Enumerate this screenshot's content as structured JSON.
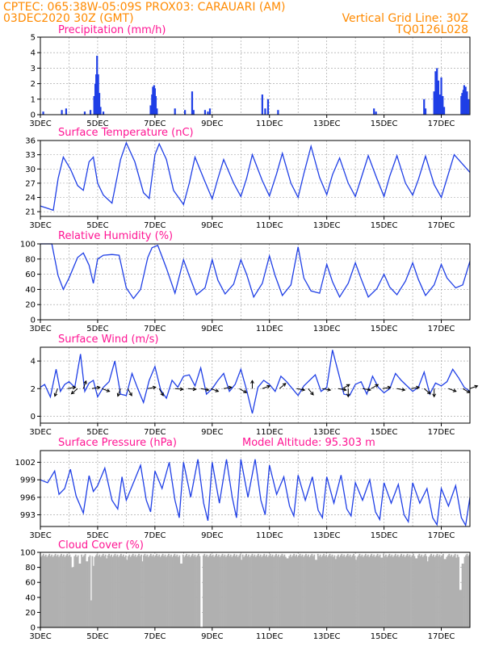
{
  "header": {
    "line1": "CPTEC:    065:38W-05:09S   PROX03: CARAUARI (AM)",
    "line2_left": "03DEC2020 30Z (GMT)",
    "line2_right": "Vertical Grid Line: 30Z",
    "line3_right": "TQ0126L028"
  },
  "colors": {
    "header": "#ff8a00",
    "title": "#ff1493",
    "series": "#1f3fe6",
    "cloud": "#b0b0b0",
    "grid": "#9a9a9a"
  },
  "x_tick_labels": [
    "3DEC",
    "5DEC",
    "7DEC",
    "9DEC",
    "11DEC",
    "13DEC",
    "15DEC",
    "17DEC"
  ],
  "x_tick_positions_days": [
    0,
    2,
    4,
    6,
    8,
    10,
    12,
    14
  ],
  "chart_data": [
    {
      "type": "bar",
      "title": "Precipitation (mm/h)",
      "ylim": [
        0,
        5
      ],
      "yticks": [
        0,
        1,
        2,
        3,
        4,
        5
      ],
      "x_day_range": [
        0,
        15
      ],
      "bars": [
        [
          0.1,
          0.2
        ],
        [
          0.75,
          0.3
        ],
        [
          0.9,
          0.4
        ],
        [
          1.55,
          0.2
        ],
        [
          1.75,
          0.3
        ],
        [
          1.88,
          1.2
        ],
        [
          1.92,
          2.0
        ],
        [
          1.95,
          2.6
        ],
        [
          1.98,
          3.8
        ],
        [
          2.02,
          2.6
        ],
        [
          2.06,
          1.4
        ],
        [
          2.1,
          0.5
        ],
        [
          2.2,
          0.2
        ],
        [
          3.85,
          0.6
        ],
        [
          3.9,
          1.3
        ],
        [
          3.93,
          1.8
        ],
        [
          3.97,
          1.9
        ],
        [
          4.0,
          1.7
        ],
        [
          4.03,
          1.2
        ],
        [
          4.07,
          0.4
        ],
        [
          4.7,
          0.4
        ],
        [
          5.05,
          0.3
        ],
        [
          5.3,
          1.5
        ],
        [
          5.35,
          0.3
        ],
        [
          5.75,
          0.3
        ],
        [
          5.85,
          0.2
        ],
        [
          5.92,
          0.4
        ],
        [
          7.75,
          1.3
        ],
        [
          7.85,
          0.4
        ],
        [
          7.95,
          1.0
        ],
        [
          8.3,
          0.3
        ],
        [
          11.65,
          0.4
        ],
        [
          11.72,
          0.2
        ],
        [
          13.4,
          1.0
        ],
        [
          13.45,
          0.4
        ],
        [
          13.75,
          1.5
        ],
        [
          13.8,
          2.8
        ],
        [
          13.85,
          3.0
        ],
        [
          13.9,
          2.2
        ],
        [
          13.95,
          1.3
        ],
        [
          14.0,
          2.4
        ],
        [
          14.05,
          1.2
        ],
        [
          14.1,
          0.5
        ],
        [
          14.7,
          1.2
        ],
        [
          14.73,
          1.4
        ],
        [
          14.77,
          1.6
        ],
        [
          14.8,
          1.9
        ],
        [
          14.85,
          1.8
        ],
        [
          14.9,
          1.5
        ],
        [
          14.95,
          1.0
        ]
      ]
    },
    {
      "type": "line",
      "title": "Surface Temperature (nC)",
      "ylim": [
        20,
        36
      ],
      "yticks": [
        21,
        24,
        27,
        30,
        33,
        36
      ],
      "x_day_range": [
        0,
        15
      ],
      "x": [
        0,
        0.2,
        0.45,
        0.62,
        0.8,
        1.05,
        1.3,
        1.5,
        1.7,
        1.85,
        2.0,
        2.2,
        2.5,
        2.8,
        3.0,
        3.3,
        3.6,
        3.8,
        4.0,
        4.15,
        4.4,
        4.65,
        5.0,
        5.2,
        5.4,
        5.75,
        6.0,
        6.2,
        6.4,
        6.75,
        7.0,
        7.2,
        7.4,
        7.75,
        8.0,
        8.25,
        8.45,
        8.75,
        9.0,
        9.2,
        9.45,
        9.75,
        10.0,
        10.2,
        10.45,
        10.75,
        11.0,
        11.2,
        11.45,
        11.75,
        12.0,
        12.2,
        12.45,
        12.75,
        13.0,
        13.2,
        13.45,
        13.75,
        14.0,
        14.2,
        14.45,
        14.75,
        15.0
      ],
      "y": [
        22.2,
        21.8,
        21.3,
        28,
        32.5,
        30,
        26.5,
        25.5,
        31.5,
        32.5,
        27,
        24.5,
        22.8,
        32,
        35.5,
        31.5,
        25,
        23.8,
        33,
        35.3,
        32,
        25.5,
        22.5,
        27,
        32.5,
        27.3,
        23.7,
        28,
        32,
        27,
        24.2,
        28,
        33,
        27.5,
        24.3,
        29,
        33.3,
        27,
        24,
        29,
        34.8,
        28.2,
        24.6,
        28.8,
        32.3,
        27,
        24.2,
        28,
        32.8,
        28,
        24.2,
        28.5,
        32.8,
        27,
        24.5,
        27.8,
        32.7,
        26.7,
        24,
        28,
        33,
        31,
        29.3
      ]
    },
    {
      "type": "line",
      "title": "Relative Humidity (%)",
      "ylim": [
        0,
        100
      ],
      "yticks": [
        0,
        20,
        40,
        60,
        80,
        100
      ],
      "x_day_range": [
        0,
        15
      ],
      "x": [
        0,
        0.4,
        0.62,
        0.8,
        1.0,
        1.3,
        1.5,
        1.7,
        1.85,
        2.0,
        2.2,
        2.5,
        2.75,
        3.0,
        3.25,
        3.5,
        3.75,
        3.9,
        4.1,
        4.4,
        4.7,
        5.0,
        5.2,
        5.45,
        5.75,
        6.0,
        6.2,
        6.45,
        6.75,
        7.0,
        7.2,
        7.45,
        7.75,
        8.0,
        8.2,
        8.45,
        8.75,
        9.0,
        9.2,
        9.45,
        9.75,
        10.0,
        10.2,
        10.45,
        10.75,
        11.0,
        11.2,
        11.45,
        11.75,
        12.0,
        12.2,
        12.45,
        12.75,
        13.0,
        13.2,
        13.45,
        13.75,
        14.0,
        14.2,
        14.5,
        14.75,
        15.0
      ],
      "y": [
        100,
        100,
        58,
        40,
        55,
        82,
        88,
        72,
        48,
        80,
        85,
        86,
        85,
        42,
        28,
        40,
        82,
        95,
        98,
        68,
        35,
        79,
        58,
        33,
        42,
        79,
        52,
        34,
        47,
        79,
        60,
        30,
        48,
        84,
        58,
        32,
        46,
        96,
        55,
        38,
        35,
        73,
        50,
        30,
        48,
        75,
        54,
        30,
        41,
        60,
        43,
        33,
        51,
        75,
        53,
        32,
        46,
        73,
        55,
        42,
        46,
        77
      ]
    },
    {
      "type": "line",
      "title": "Surface Wind (m/s)",
      "ylim": [
        -0.5,
        5
      ],
      "yticks": [
        0,
        2,
        4
      ],
      "x_day_range": [
        0,
        15
      ],
      "x": [
        0,
        0.15,
        0.35,
        0.55,
        0.7,
        0.85,
        1.0,
        1.2,
        1.4,
        1.55,
        1.7,
        1.85,
        2.0,
        2.2,
        2.4,
        2.6,
        2.8,
        3.0,
        3.2,
        3.4,
        3.6,
        3.8,
        4.0,
        4.2,
        4.4,
        4.6,
        4.8,
        5.0,
        5.2,
        5.4,
        5.6,
        5.8,
        6.0,
        6.2,
        6.4,
        6.6,
        6.8,
        7.0,
        7.2,
        7.4,
        7.6,
        7.8,
        8.0,
        8.2,
        8.4,
        8.6,
        8.8,
        9.0,
        9.2,
        9.4,
        9.6,
        9.8,
        10.0,
        10.2,
        10.4,
        10.6,
        10.8,
        11.0,
        11.2,
        11.4,
        11.6,
        11.8,
        12.0,
        12.2,
        12.4,
        12.6,
        12.8,
        13.0,
        13.2,
        13.4,
        13.6,
        13.8,
        14.0,
        14.2,
        14.4,
        14.6,
        14.8,
        15.0
      ],
      "y": [
        2.1,
        2.3,
        1.4,
        3.4,
        1.8,
        2.3,
        2.5,
        2.1,
        4.5,
        1.8,
        2.4,
        2.6,
        1.4,
        2.1,
        2.5,
        4.0,
        1.6,
        1.5,
        3.1,
        2.0,
        1.0,
        2.6,
        3.6,
        1.9,
        1.3,
        2.6,
        2.1,
        2.9,
        3.0,
        2.2,
        3.5,
        1.6,
        2.0,
        2.6,
        3.1,
        1.8,
        2.3,
        3.4,
        1.9,
        0.2,
        2.1,
        2.6,
        2.3,
        1.8,
        2.9,
        2.5,
        2.0,
        1.5,
        2.2,
        2.6,
        3.0,
        1.8,
        2.1,
        4.8,
        3.2,
        1.6,
        1.5,
        2.3,
        2.5,
        1.6,
        2.9,
        2.1,
        1.7,
        2.0,
        3.1,
        2.6,
        2.2,
        1.8,
        2.1,
        3.2,
        1.6,
        2.4,
        2.2,
        2.5,
        3.4,
        2.8,
        2.1,
        1.8
      ],
      "arrows_dir_deg": [
        [
          0.6,
          200
        ],
        [
          0.95,
          80
        ],
        [
          1.3,
          230
        ],
        [
          1.5,
          20
        ],
        [
          1.8,
          80
        ],
        [
          2.15,
          110
        ],
        [
          2.8,
          200
        ],
        [
          3.05,
          150
        ],
        [
          3.75,
          80
        ],
        [
          4.15,
          150
        ],
        [
          4.7,
          95
        ],
        [
          5.15,
          95
        ],
        [
          5.6,
          100
        ],
        [
          5.95,
          110
        ],
        [
          6.4,
          80
        ],
        [
          6.95,
          120
        ],
        [
          7.4,
          0
        ],
        [
          7.75,
          70
        ],
        [
          8.35,
          50
        ],
        [
          8.95,
          100
        ],
        [
          9.35,
          140
        ],
        [
          9.85,
          100
        ],
        [
          10.4,
          100
        ],
        [
          10.55,
          60
        ],
        [
          10.75,
          180
        ],
        [
          11.25,
          100
        ],
        [
          11.55,
          60
        ],
        [
          11.95,
          80
        ],
        [
          12.45,
          100
        ],
        [
          12.95,
          80
        ],
        [
          13.4,
          130
        ],
        [
          13.75,
          180
        ],
        [
          14.25,
          110
        ],
        [
          14.75,
          120
        ],
        [
          15.0,
          70
        ]
      ]
    },
    {
      "type": "line",
      "title": "Surface Pressure (hPa)",
      "annotation": "Model Altitude: 95.303 m",
      "ylim": [
        991,
        1004
      ],
      "yticks": [
        993,
        996,
        999,
        1002
      ],
      "x_day_range": [
        0,
        15
      ],
      "x": [
        0,
        0.25,
        0.5,
        0.65,
        0.85,
        1.05,
        1.25,
        1.5,
        1.7,
        1.85,
        2.0,
        2.25,
        2.5,
        2.7,
        2.85,
        3.0,
        3.25,
        3.5,
        3.7,
        3.85,
        4.0,
        4.25,
        4.5,
        4.7,
        4.85,
        5.0,
        5.25,
        5.5,
        5.7,
        5.85,
        6.0,
        6.25,
        6.5,
        6.7,
        6.85,
        7.0,
        7.25,
        7.5,
        7.7,
        7.85,
        8.0,
        8.25,
        8.5,
        8.7,
        8.85,
        9.0,
        9.25,
        9.5,
        9.7,
        9.85,
        10.0,
        10.25,
        10.5,
        10.7,
        10.85,
        11.0,
        11.25,
        11.5,
        11.7,
        11.85,
        12.0,
        12.25,
        12.5,
        12.7,
        12.85,
        13.0,
        13.25,
        13.5,
        13.7,
        13.85,
        14.0,
        14.25,
        14.5,
        14.7,
        14.85,
        15.0
      ],
      "y": [
        999,
        998.5,
        1000.5,
        996.5,
        997.5,
        1000.8,
        996.2,
        993.3,
        999.7,
        997.0,
        998,
        1001,
        995.5,
        994,
        999.5,
        995.5,
        998.5,
        1001.5,
        995.5,
        993.5,
        1000.5,
        997.5,
        1002,
        995.5,
        992.5,
        1002,
        996,
        1002.5,
        995,
        992,
        1002,
        995,
        1002.5,
        996,
        992.5,
        1002.5,
        996,
        1002.5,
        995.5,
        993,
        1001.5,
        996.5,
        999.5,
        994.5,
        992.8,
        999.8,
        995.5,
        999.5,
        993.8,
        992.5,
        999.5,
        995,
        999.8,
        994,
        992.8,
        998.5,
        995.5,
        999,
        993.5,
        992.2,
        998.5,
        995,
        998.2,
        993,
        991.8,
        998.5,
        995,
        997.5,
        992.5,
        991.3,
        997.5,
        994.5,
        998,
        992.5,
        991.2,
        996
      ]
    },
    {
      "type": "bar",
      "title": "Cloud Cover (%)",
      "ylim": [
        0,
        100
      ],
      "yticks": [
        0,
        20,
        40,
        60,
        80,
        100
      ],
      "x_day_range": [
        0,
        15
      ],
      "base_value": 96,
      "dips": [
        [
          1.1,
          80
        ],
        [
          1.35,
          85
        ],
        [
          1.6,
          88
        ],
        [
          1.75,
          36
        ],
        [
          1.83,
          82
        ],
        [
          2.3,
          92
        ],
        [
          3.0,
          90
        ],
        [
          3.55,
          88
        ],
        [
          4.9,
          85
        ],
        [
          5.6,
          88
        ],
        [
          5.61,
          0
        ],
        [
          7.0,
          90
        ],
        [
          8.6,
          92
        ],
        [
          9.6,
          90
        ],
        [
          10.3,
          91
        ],
        [
          11.0,
          90
        ],
        [
          11.9,
          93
        ],
        [
          13.1,
          92
        ],
        [
          13.5,
          88
        ],
        [
          14.1,
          91
        ],
        [
          14.5,
          93
        ],
        [
          14.65,
          50
        ],
        [
          14.72,
          85
        ]
      ]
    }
  ]
}
